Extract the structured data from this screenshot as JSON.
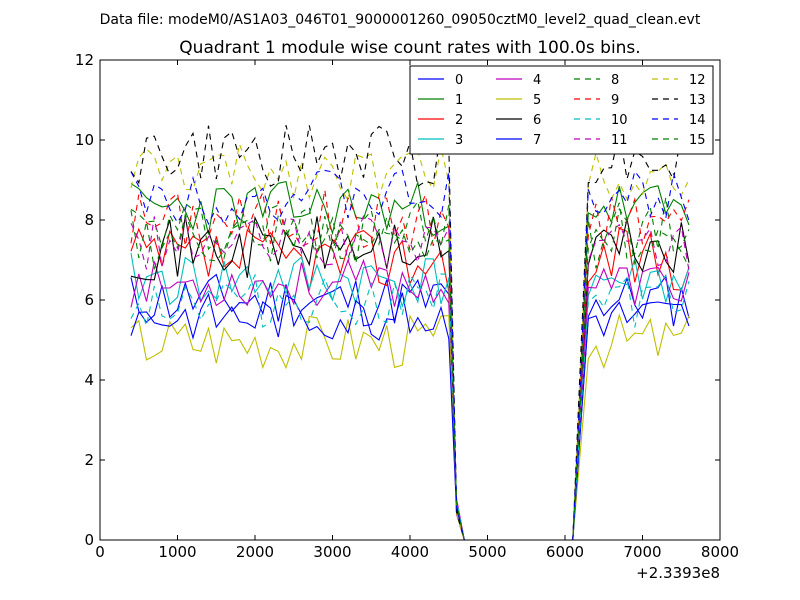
{
  "figure": {
    "suptitle": "Data file: modeM0/AS1A03_046T01_9000001260_09050cztM0_level2_quad_clean.evt"
  },
  "chart_data": {
    "type": "line",
    "title": "Quadrant 1 module wise count rates with 100.0s bins.",
    "xlabel": "",
    "ylabel": "",
    "x_offset_label": "+2.3393e8",
    "xlim": [
      0,
      8000
    ],
    "ylim": [
      0,
      12
    ],
    "xticks": [
      0,
      1000,
      2000,
      3000,
      4000,
      5000,
      6000,
      7000,
      8000
    ],
    "yticks": [
      0,
      2,
      4,
      6,
      8,
      10,
      12
    ],
    "x_groups": [
      {
        "start": 400,
        "step": 100,
        "count": 42
      },
      {
        "start": 4600,
        "step": 100,
        "count": 5
      },
      {
        "start": 6100,
        "step": 100,
        "count": 16
      }
    ],
    "legend": {
      "placement": "top-right",
      "columns": 4
    },
    "series": [
      {
        "name": "0",
        "color": "#0000ff",
        "dash": "solid",
        "level": 6.0,
        "noise": 0.35,
        "s": 11
      },
      {
        "name": "1",
        "color": "#008000",
        "dash": "solid",
        "level": 8.3,
        "noise": 0.35,
        "s": 23
      },
      {
        "name": "2",
        "color": "#ff0000",
        "dash": "solid",
        "level": 7.0,
        "noise": 0.4,
        "s": 37
      },
      {
        "name": "3",
        "color": "#00bfbf",
        "dash": "solid",
        "level": 6.5,
        "noise": 0.35,
        "s": 41
      },
      {
        "name": "4",
        "color": "#bf00bf",
        "dash": "solid",
        "level": 6.4,
        "noise": 0.3,
        "s": 53
      },
      {
        "name": "5",
        "color": "#bfbf00",
        "dash": "solid",
        "level": 5.0,
        "noise": 0.35,
        "s": 67
      },
      {
        "name": "6",
        "color": "#000000",
        "dash": "solid",
        "level": 7.3,
        "noise": 0.4,
        "s": 71
      },
      {
        "name": "7",
        "color": "#0000ff",
        "dash": "solid",
        "level": 5.6,
        "noise": 0.3,
        "s": 83
      },
      {
        "name": "8",
        "color": "#008000",
        "dash": "dashed",
        "level": 7.8,
        "noise": 0.4,
        "s": 97
      },
      {
        "name": "9",
        "color": "#ff0000",
        "dash": "dashed",
        "level": 8.0,
        "noise": 0.4,
        "s": 101
      },
      {
        "name": "10",
        "color": "#00bfbf",
        "dash": "dashed",
        "level": 6.0,
        "noise": 0.35,
        "s": 113
      },
      {
        "name": "11",
        "color": "#bf00bf",
        "dash": "dashed",
        "level": 7.4,
        "noise": 0.35,
        "s": 127
      },
      {
        "name": "12",
        "color": "#bfbf00",
        "dash": "dashed",
        "level": 9.2,
        "noise": 0.35,
        "s": 131
      },
      {
        "name": "13",
        "color": "#000000",
        "dash": "dashed",
        "level": 9.6,
        "noise": 0.4,
        "s": 149
      },
      {
        "name": "14",
        "color": "#0000ff",
        "dash": "dashed",
        "level": 8.6,
        "noise": 0.35,
        "s": 151
      },
      {
        "name": "15",
        "color": "#008000",
        "dash": "dashed",
        "level": 7.5,
        "noise": 0.4,
        "s": 163
      }
    ]
  }
}
